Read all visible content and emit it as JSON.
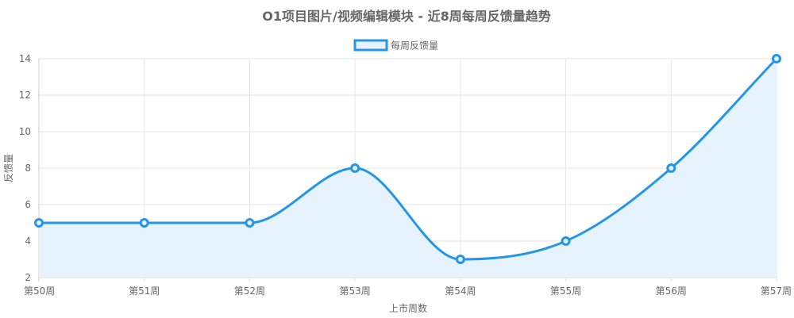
{
  "chart_data": {
    "type": "line",
    "title": "O1项目图片/视频编辑模块 - 近8周每周反馈量趋势",
    "xlabel": "上市周数",
    "ylabel": "反馈量",
    "categories": [
      "第50周",
      "第51周",
      "第52周",
      "第53周",
      "第54周",
      "第55周",
      "第56周",
      "第57周"
    ],
    "series": [
      {
        "name": "每周反馈量",
        "values": [
          5,
          5,
          5,
          8,
          3,
          4,
          8,
          14
        ],
        "color": "#2496e8",
        "fill": "#e6f3fc"
      }
    ],
    "ylim": [
      2,
      14
    ],
    "yticks": [
      2,
      4,
      6,
      8,
      10,
      12,
      14
    ],
    "grid": true,
    "legend": "top-center",
    "area_fill": true,
    "smooth": true
  }
}
